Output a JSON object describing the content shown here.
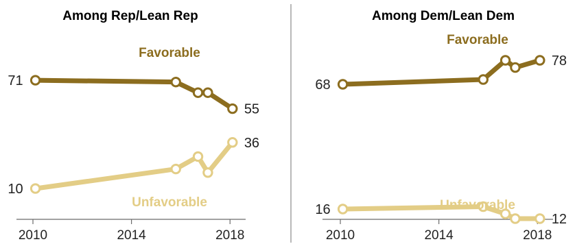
{
  "chart_data": [
    {
      "type": "line",
      "title": "Among Rep/Lean Rep",
      "x_ticks": [
        2010,
        2014,
        2018
      ],
      "xlim": [
        2010,
        2018.3
      ],
      "ylim": [
        0,
        100
      ],
      "grid": false,
      "series": [
        {
          "name": "Favorable",
          "color": "#8c6d1f",
          "points": [
            {
              "x": 2010.1,
              "y": 71
            },
            {
              "x": 2015.8,
              "y": 70
            },
            {
              "x": 2016.7,
              "y": 64
            },
            {
              "x": 2017.1,
              "y": 64
            },
            {
              "x": 2018.1,
              "y": 55
            }
          ],
          "labels": [
            {
              "index": 0,
              "text": "71"
            },
            {
              "index": 4,
              "text": "55"
            }
          ]
        },
        {
          "name": "Unfavorable",
          "color": "#e3cd86",
          "points": [
            {
              "x": 2010.1,
              "y": 10
            },
            {
              "x": 2015.8,
              "y": 21
            },
            {
              "x": 2016.7,
              "y": 28
            },
            {
              "x": 2017.1,
              "y": 19
            },
            {
              "x": 2018.1,
              "y": 36
            }
          ],
          "labels": [
            {
              "index": 0,
              "text": "10"
            },
            {
              "index": 4,
              "text": "36"
            }
          ]
        }
      ]
    },
    {
      "type": "line",
      "title": "Among Dem/Lean Dem",
      "x_ticks": [
        2010,
        2014,
        2018
      ],
      "xlim": [
        2010,
        2018.3
      ],
      "ylim": [
        0,
        100
      ],
      "grid": false,
      "series": [
        {
          "name": "Favorable",
          "color": "#8c6d1f",
          "points": [
            {
              "x": 2010.1,
              "y": 68
            },
            {
              "x": 2015.8,
              "y": 70
            },
            {
              "x": 2016.7,
              "y": 78
            },
            {
              "x": 2017.1,
              "y": 75
            },
            {
              "x": 2018.1,
              "y": 78
            }
          ],
          "labels": [
            {
              "index": 0,
              "text": "68"
            },
            {
              "index": 4,
              "text": "78"
            }
          ]
        },
        {
          "name": "Unfavorable",
          "color": "#e3cd86",
          "points": [
            {
              "x": 2010.1,
              "y": 16
            },
            {
              "x": 2015.8,
              "y": 17
            },
            {
              "x": 2016.7,
              "y": 14
            },
            {
              "x": 2017.1,
              "y": 12
            },
            {
              "x": 2018.1,
              "y": 12
            }
          ],
          "labels": [
            {
              "index": 0,
              "text": "16"
            },
            {
              "index": 4,
              "text": "12"
            }
          ]
        }
      ]
    }
  ]
}
